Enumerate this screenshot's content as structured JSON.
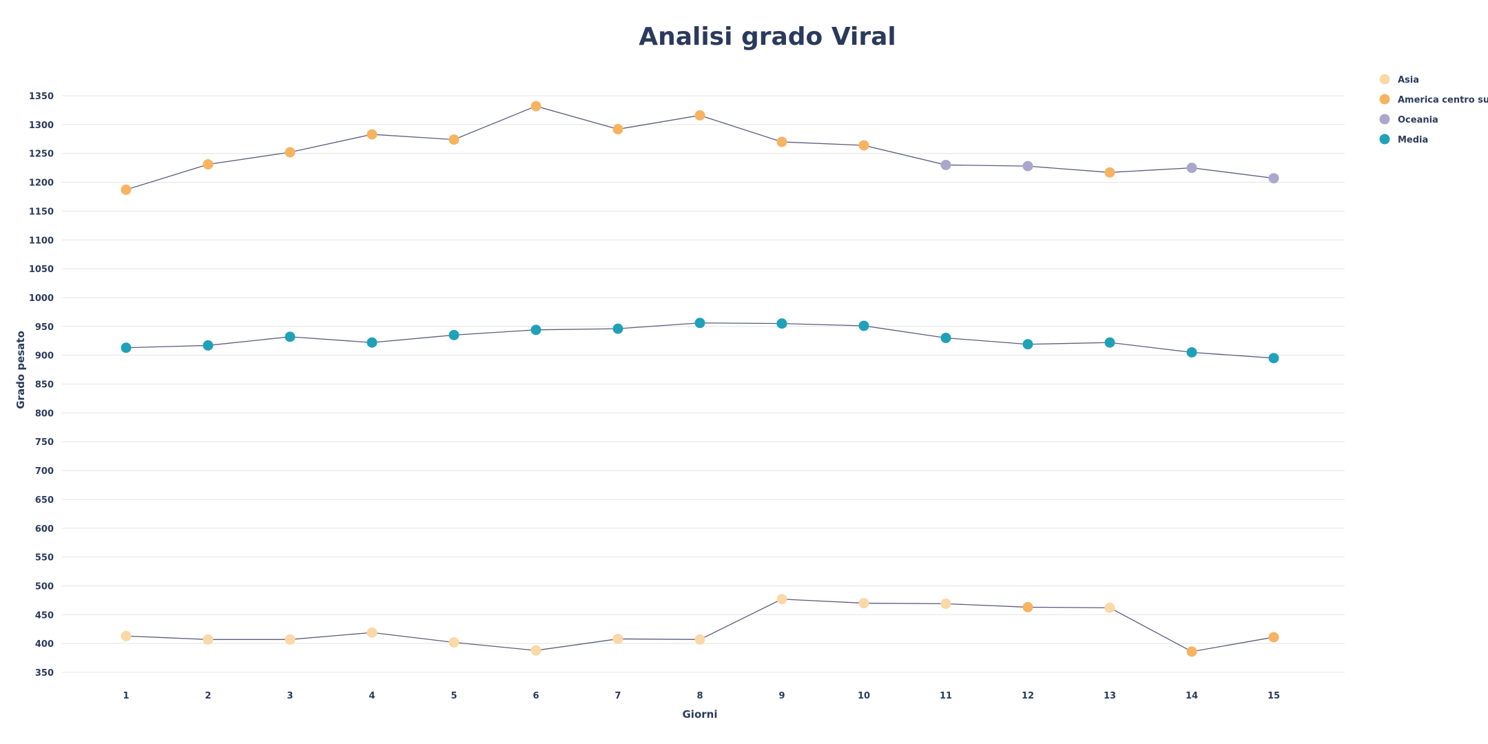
{
  "chart_data": {
    "type": "line",
    "title": "Analisi grado Viral",
    "xlabel": "Giorni",
    "ylabel": "Grado pesato",
    "x": [
      1,
      2,
      3,
      4,
      5,
      6,
      7,
      8,
      9,
      10,
      11,
      12,
      13,
      14,
      15
    ],
    "yticks": [
      350,
      400,
      450,
      500,
      550,
      600,
      650,
      700,
      750,
      800,
      850,
      900,
      950,
      1000,
      1050,
      1100,
      1150,
      1200,
      1250,
      1300,
      1350
    ],
    "ylim": [
      325,
      1375
    ],
    "grid": true,
    "legend_position": "top-right",
    "legend": [
      {
        "label": "Asia",
        "color": "#fbd8a6"
      },
      {
        "label": "America centro sud",
        "color": "#f6b461"
      },
      {
        "label": "Oceania",
        "color": "#aba6cc"
      },
      {
        "label": "Media",
        "color": "#1fa1b8"
      }
    ],
    "series": [
      {
        "values": [
          1187,
          1231,
          1252,
          1283,
          1274,
          1332,
          1292,
          1316,
          1270,
          1264,
          1230,
          1228,
          1217,
          1225,
          1207
        ],
        "point_colors": [
          "America centro sud",
          "America centro sud",
          "America centro sud",
          "America centro sud",
          "America centro sud",
          "America centro sud",
          "America centro sud",
          "America centro sud",
          "America centro sud",
          "America centro sud",
          "Oceania",
          "Oceania",
          "America centro sud",
          "Oceania",
          "Oceania"
        ]
      },
      {
        "values": [
          913,
          917,
          932,
          922,
          935,
          944,
          946,
          956,
          955,
          951,
          930,
          919,
          922,
          905,
          895
        ],
        "point_colors": [
          "Media",
          "Media",
          "Media",
          "Media",
          "Media",
          "Media",
          "Media",
          "Media",
          "Media",
          "Media",
          "Media",
          "Media",
          "Media",
          "Media",
          "Media"
        ]
      },
      {
        "values": [
          413,
          407,
          407,
          419,
          402,
          388,
          408,
          407,
          477,
          470,
          469,
          463,
          462,
          386,
          411
        ],
        "point_colors": [
          "Asia",
          "Asia",
          "Asia",
          "Asia",
          "Asia",
          "Asia",
          "Asia",
          "Asia",
          "Asia",
          "Asia",
          "Asia",
          "America centro sud",
          "Asia",
          "America centro sud",
          "America centro sud"
        ]
      }
    ]
  }
}
